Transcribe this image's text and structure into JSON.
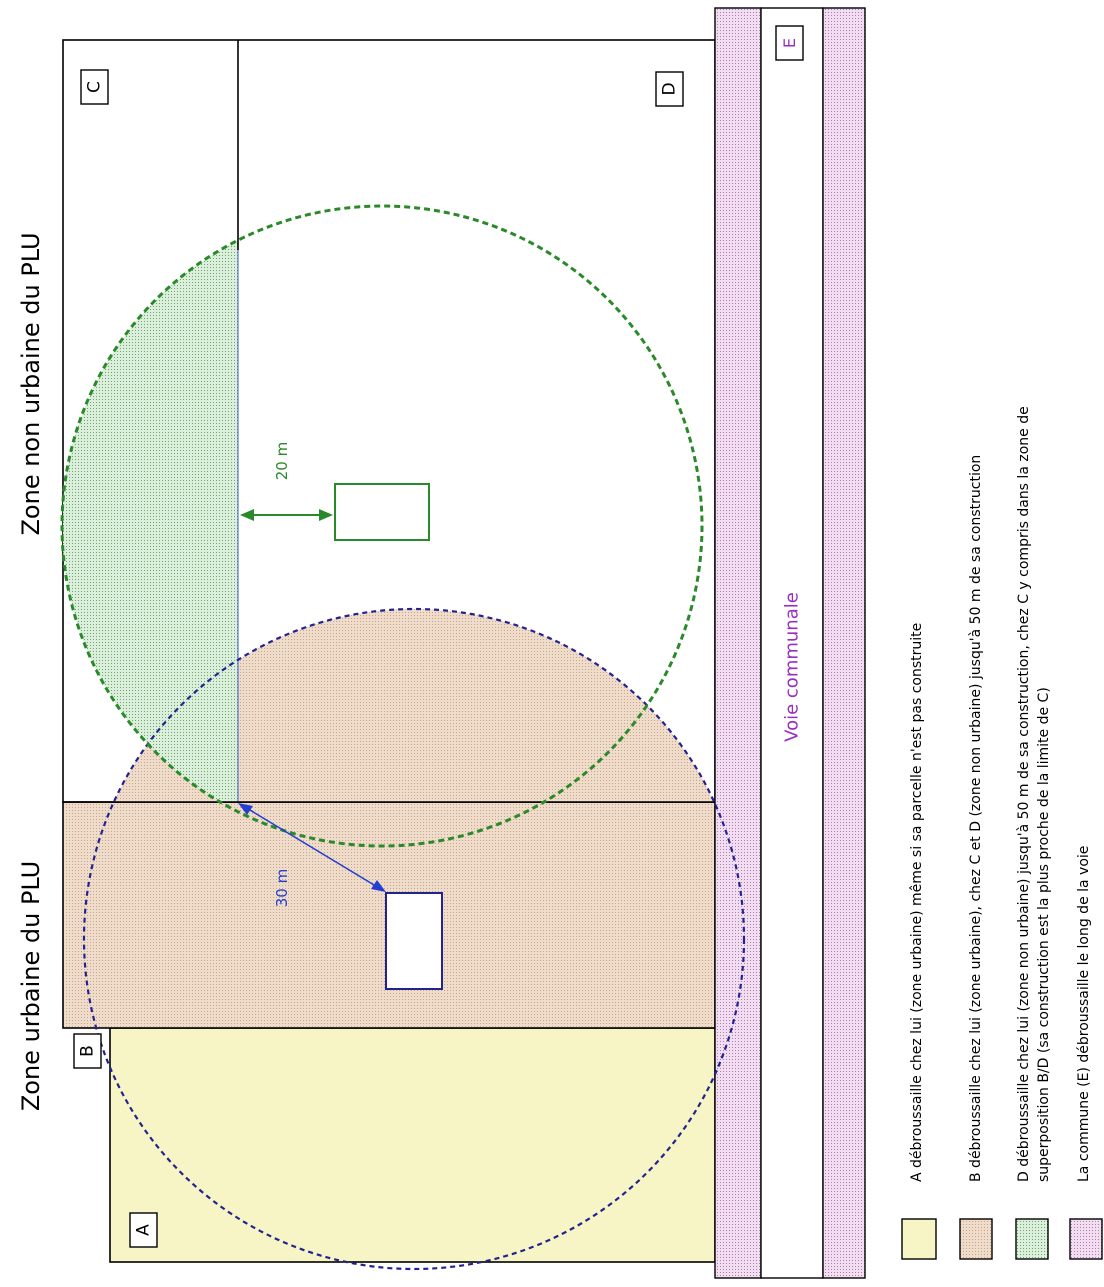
{
  "zones": {
    "urban_label": "Zone urbaine du PLU",
    "non_urban_label": "Zone non urbaine du PLU"
  },
  "parcels": {
    "a": "A",
    "b": "B",
    "c": "C",
    "d": "D",
    "e": "E"
  },
  "road": {
    "label": "Voie communale"
  },
  "distances": {
    "green": "20 m",
    "blue": "30 m"
  },
  "legend": {
    "items": [
      {
        "key": "a",
        "color": "#f7f5c6",
        "lines": [
          "A débroussaille chez lui (zone urbaine) même si sa parcelle n'est pas construite"
        ]
      },
      {
        "key": "b",
        "color": "#f0dccb",
        "lines": [
          "B débroussaille chez lui (zone urbaine), chez C et D (zone non urbaine) jusqu'à 50 m de sa construction"
        ]
      },
      {
        "key": "d",
        "color": "#d6ecd6",
        "lines": [
          "D débroussaille chez lui (zone non urbaine) jusqu'à 50 m de sa construction, chez C y compris dans la zone de",
          "superposition B/D (sa construction est la plus proche de la limite de C)"
        ]
      },
      {
        "key": "e",
        "color": "#ecd6ec",
        "lines": [
          "La commune (E) débroussaille le long de la voie"
        ]
      }
    ]
  },
  "colors": {
    "parcel_a": "#f7f5c6",
    "parcel_b": "#f0dccb",
    "green": "#2a8a2a",
    "blue": "#23238f",
    "road_hatch": "#ecd6ec",
    "road_text": "#9a2ec0"
  }
}
